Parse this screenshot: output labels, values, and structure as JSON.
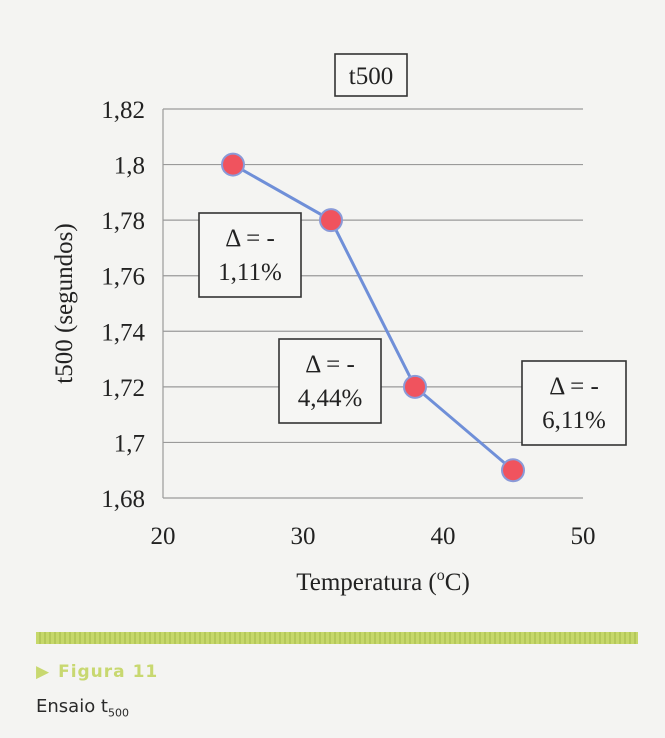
{
  "chart_data": {
    "type": "line",
    "title": "t500",
    "xlabel": "Temperatura (°C)",
    "xlabel_parts": {
      "pre": "Temperatura (",
      "sup": "o",
      "post": "C)"
    },
    "ylabel": "t500 (segundos)",
    "xlim": [
      20,
      50
    ],
    "ylim": [
      1.68,
      1.82
    ],
    "x_ticks": [
      20,
      30,
      40,
      50
    ],
    "x_tick_labels": [
      "20",
      "30",
      "40",
      "50"
    ],
    "y_ticks": [
      1.68,
      1.7,
      1.72,
      1.74,
      1.76,
      1.78,
      1.8,
      1.82
    ],
    "y_tick_labels": [
      "1,68",
      "1,7",
      "1,72",
      "1,74",
      "1,76",
      "1,78",
      "1,8",
      "1,82"
    ],
    "grid": true,
    "series": [
      {
        "x": [
          25,
          32,
          38,
          45
        ],
        "y": [
          1.8,
          1.78,
          1.72,
          1.69
        ]
      }
    ],
    "annotations": [
      {
        "point_index": 1,
        "lines": [
          "Δ = -",
          "1,11%"
        ]
      },
      {
        "point_index": 2,
        "lines": [
          "Δ = -",
          "4,44%"
        ]
      },
      {
        "point_index": 3,
        "lines": [
          "Δ = -",
          "6,11%"
        ]
      }
    ],
    "colors": {
      "line": "#6f8fd8",
      "marker_fill": "#f0535e",
      "marker_stroke": "#8a9ad8"
    }
  },
  "figure": {
    "label": "Figura 11",
    "caption_main": "Ensaio t",
    "caption_sub": "500"
  }
}
